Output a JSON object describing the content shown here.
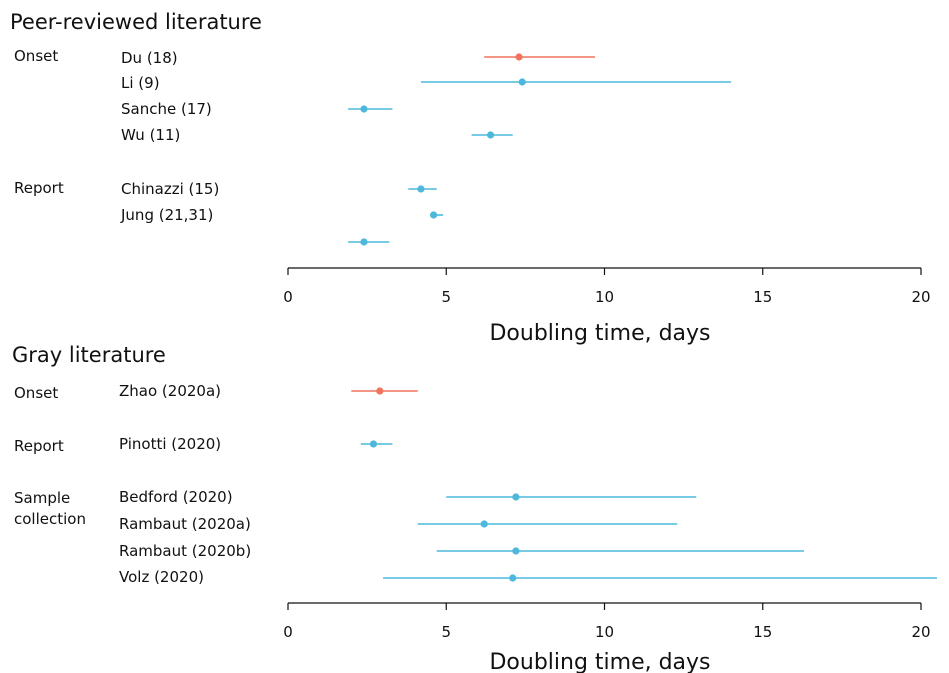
{
  "chart_data": [
    {
      "type": "forest",
      "title": "Peer-reviewed literature",
      "xlabel": "Doubling time, days",
      "xlim": [
        0,
        20
      ],
      "xticks": [
        0,
        5,
        10,
        15,
        20
      ],
      "colors": {
        "onset": "#f0735f",
        "other": "#4db8dc"
      },
      "rows": [
        {
          "group": "Onset",
          "label": "Du (18)",
          "estimate": 7.3,
          "low": 6.2,
          "high": 9.7,
          "color": "#f0735f"
        },
        {
          "group": "",
          "label": "Li (9)",
          "estimate": 7.4,
          "low": 4.2,
          "high": 14.0,
          "color": "#4db8dc"
        },
        {
          "group": "",
          "label": "Sanche (17)",
          "estimate": 2.4,
          "low": 1.9,
          "high": 3.3,
          "color": "#4db8dc"
        },
        {
          "group": "",
          "label": "Wu (11)",
          "estimate": 6.4,
          "low": 5.8,
          "high": 7.1,
          "color": "#4db8dc"
        },
        {
          "group": "Report",
          "label": "Chinazzi (15)",
          "estimate": 4.2,
          "low": 3.8,
          "high": 4.7,
          "color": "#4db8dc"
        },
        {
          "group": "",
          "label": "Jung (21,31)",
          "estimate": 4.6,
          "low": 4.5,
          "high": 4.9,
          "color": "#4db8dc"
        },
        {
          "group": "",
          "label": "",
          "estimate": 2.4,
          "low": 1.9,
          "high": 3.2,
          "color": "#4db8dc"
        }
      ]
    },
    {
      "type": "forest",
      "title": "Gray literature",
      "xlabel": "Doubling time, days",
      "xlim": [
        0,
        20
      ],
      "xticks": [
        0,
        5,
        10,
        15,
        20
      ],
      "colors": {
        "onset": "#f0735f",
        "other": "#4db8dc"
      },
      "rows": [
        {
          "group": "Onset",
          "label": "Zhao (2020a)",
          "estimate": 2.9,
          "low": 2.0,
          "high": 4.1,
          "color": "#f0735f"
        },
        {
          "group": "Report",
          "label": "Pinotti (2020)",
          "estimate": 2.7,
          "low": 2.3,
          "high": 3.3,
          "color": "#4db8dc"
        },
        {
          "group": "Sample collection",
          "label": "Bedford (2020)",
          "estimate": 7.2,
          "low": 5.0,
          "high": 12.9,
          "color": "#4db8dc"
        },
        {
          "group": "",
          "label": "Rambaut (2020a)",
          "estimate": 6.2,
          "low": 4.1,
          "high": 12.3,
          "color": "#4db8dc"
        },
        {
          "group": "",
          "label": "Rambaut (2020b)",
          "estimate": 7.2,
          "low": 4.7,
          "high": 16.3,
          "color": "#4db8dc"
        },
        {
          "group": "",
          "label": "Volz (2020)",
          "estimate": 7.1,
          "low": 3.0,
          "high": 20.6,
          "color": "#4db8dc"
        }
      ]
    }
  ]
}
